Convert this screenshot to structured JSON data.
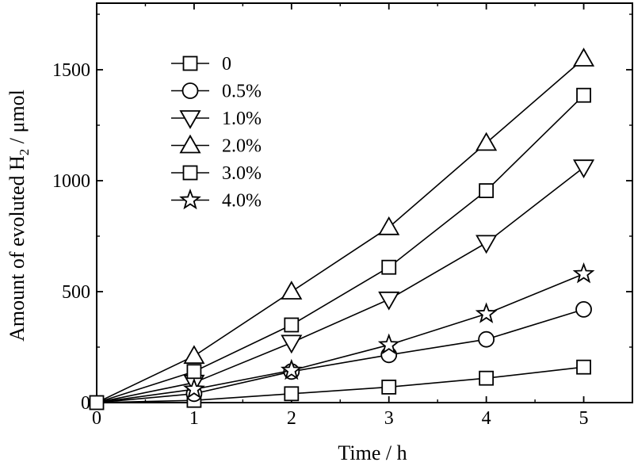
{
  "chart_data": {
    "type": "line",
    "title": "",
    "xlabel": "Time / h",
    "ylabel_main": "Amount of evoluted H",
    "ylabel_sub": "2",
    "ylabel_tail": " / μmol",
    "xlim": [
      0,
      5.5
    ],
    "ylim": [
      0,
      1800
    ],
    "xticks": [
      0,
      1,
      2,
      3,
      4,
      5
    ],
    "yticks": [
      0,
      500,
      1000,
      1500
    ],
    "grid": false,
    "legend_position": "top-left",
    "x": [
      0,
      1,
      2,
      3,
      4,
      5
    ],
    "series": [
      {
        "name": "0",
        "marker": "square",
        "values": [
          0,
          10,
          40,
          70,
          110,
          160
        ]
      },
      {
        "name": "0.5%",
        "marker": "circle",
        "values": [
          0,
          40,
          140,
          215,
          285,
          420
        ]
      },
      {
        "name": "1.0%",
        "marker": "triangle-down",
        "values": [
          0,
          90,
          270,
          465,
          720,
          1060
        ]
      },
      {
        "name": "2.0%",
        "marker": "triangle-up",
        "values": [
          0,
          210,
          500,
          790,
          1170,
          1550
        ]
      },
      {
        "name": "3.0%",
        "marker": "square",
        "values": [
          0,
          140,
          350,
          610,
          955,
          1385
        ]
      },
      {
        "name": "4.0%",
        "marker": "star",
        "values": [
          0,
          60,
          145,
          260,
          400,
          580
        ]
      }
    ]
  }
}
